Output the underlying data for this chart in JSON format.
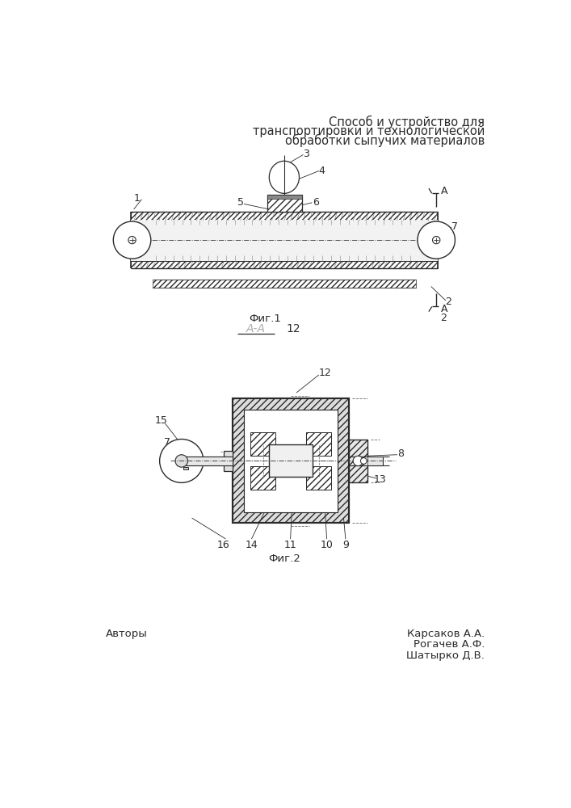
{
  "title_lines": [
    "Способ и устройство для",
    "транспортировки и технологической",
    "обработки сыпучих материалов"
  ],
  "fig1_label": "Фиг.1",
  "fig2_label": "Фиг.2",
  "section_label": "А-А",
  "section_num": "12",
  "authors_label": "Авторы",
  "authors": [
    "Карсаков А.А.",
    "Рогачев А.Ф.",
    "Шатырко Д.В."
  ],
  "bg_color": "#ffffff",
  "line_color": "#2a2a2a",
  "label_color": "#2a2a2a",
  "font_size_title": 10.5,
  "font_size_label": 9,
  "font_size_fig": 9.5,
  "font_size_authors": 9.5
}
